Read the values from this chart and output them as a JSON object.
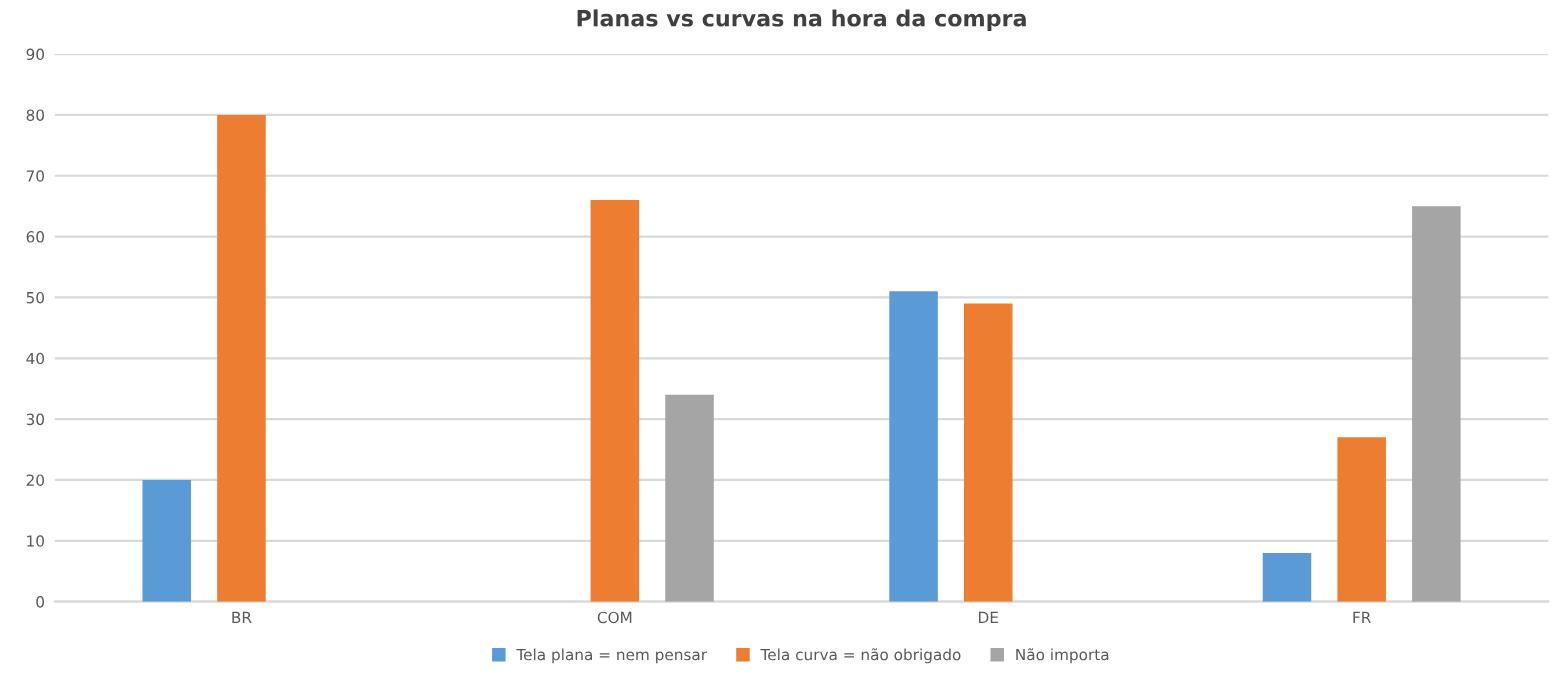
{
  "chart_data": {
    "type": "bar",
    "title": "Planas vs curvas na hora da compra",
    "categories": [
      "BR",
      "COM",
      "DE",
      "FR"
    ],
    "series": [
      {
        "name": "Tela plana = nem pensar",
        "color": "#5b9bd5",
        "values": [
          20,
          null,
          51,
          8
        ]
      },
      {
        "name": "Tela curva = não obrigado",
        "color": "#ed7d31",
        "values": [
          80,
          66,
          49,
          27
        ]
      },
      {
        "name": "Não importa",
        "color": "#a5a5a5",
        "values": [
          null,
          34,
          null,
          65
        ]
      }
    ],
    "ylim": [
      0,
      90
    ],
    "yticks": [
      0,
      10,
      20,
      30,
      40,
      50,
      60,
      70,
      80,
      90
    ],
    "grid": "y",
    "legend": "bottom"
  }
}
